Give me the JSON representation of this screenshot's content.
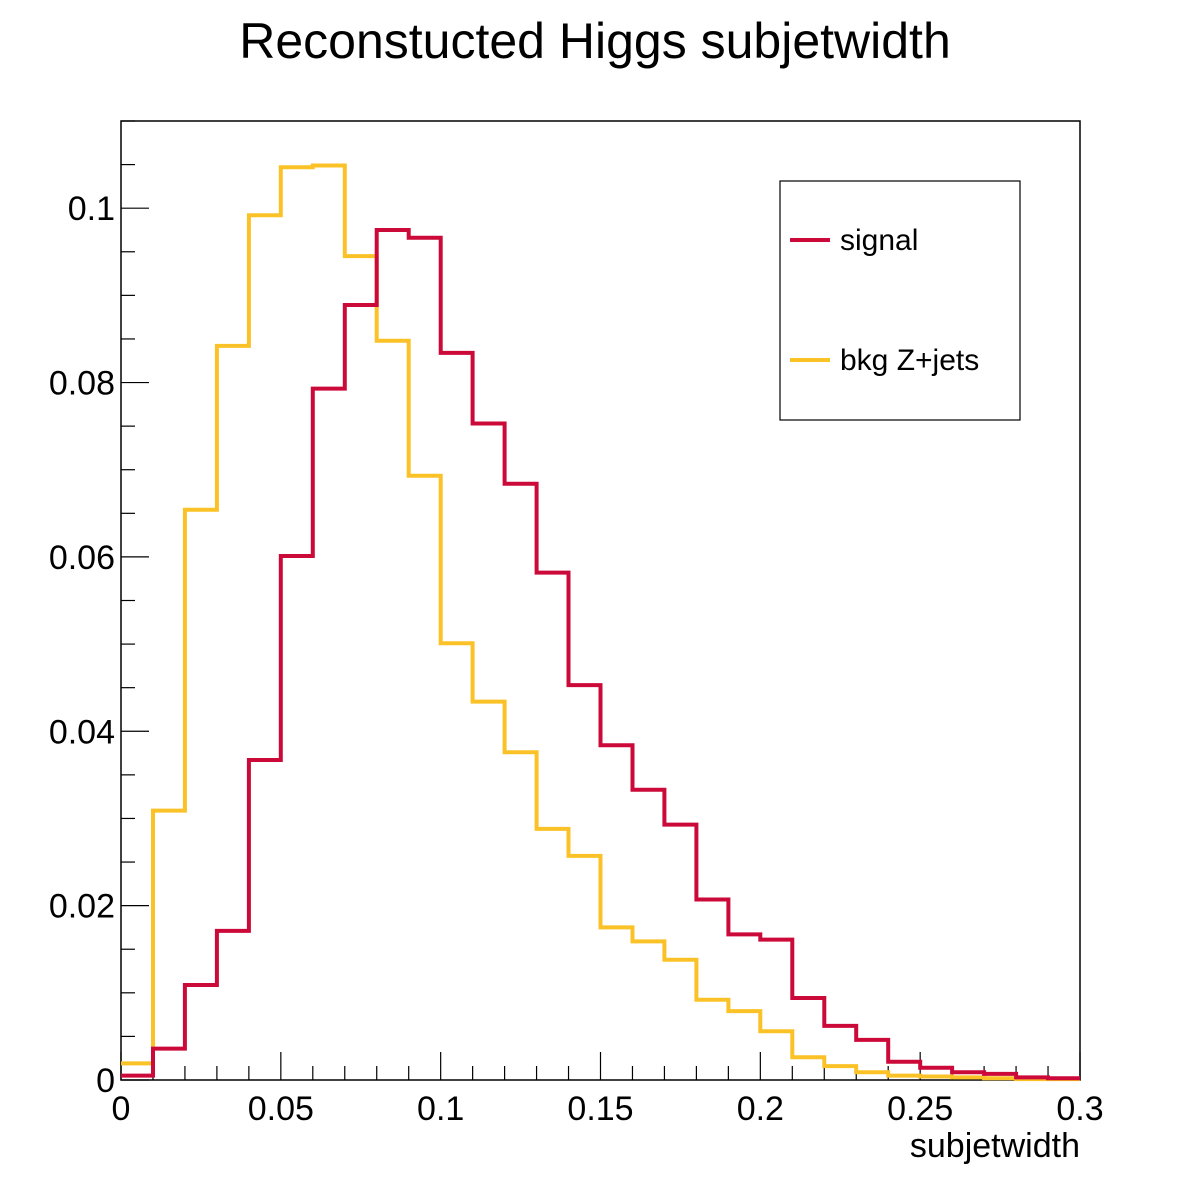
{
  "chart_data": {
    "type": "histogram",
    "title": "Reconstucted Higgs subjetwidth",
    "xlabel": "subjetwidth",
    "ylabel": "",
    "xlim": [
      0,
      0.3
    ],
    "ylim": [
      0,
      0.11
    ],
    "bin_width": 0.01,
    "x_ticks": [
      {
        "value": 0,
        "label": "0"
      },
      {
        "value": 0.05,
        "label": "0.05"
      },
      {
        "value": 0.1,
        "label": "0.1"
      },
      {
        "value": 0.15,
        "label": "0.15"
      },
      {
        "value": 0.2,
        "label": "0.2"
      },
      {
        "value": 0.25,
        "label": "0.25"
      },
      {
        "value": 0.3,
        "label": "0.3"
      }
    ],
    "y_ticks": [
      {
        "value": 0,
        "label": "0"
      },
      {
        "value": 0.02,
        "label": "0.02"
      },
      {
        "value": 0.04,
        "label": "0.04"
      },
      {
        "value": 0.06,
        "label": "0.06"
      },
      {
        "value": 0.08,
        "label": "0.08"
      },
      {
        "value": 0.1,
        "label": "0.1"
      }
    ],
    "grid": false,
    "legend_position": "top-right",
    "series": [
      {
        "name": "signal",
        "color": "#cc0a3a",
        "values": [
          0.0005,
          0.0036,
          0.0109,
          0.0171,
          0.0367,
          0.0601,
          0.0793,
          0.0889,
          0.0975,
          0.0966,
          0.0834,
          0.0753,
          0.0684,
          0.0582,
          0.0453,
          0.0384,
          0.0333,
          0.0293,
          0.0207,
          0.0167,
          0.0161,
          0.0094,
          0.0062,
          0.0046,
          0.0021,
          0.0014,
          0.0009,
          0.0007,
          0.0003,
          0.0002
        ]
      },
      {
        "name": "bkg Z+jets",
        "color": "#fbc227",
        "values": [
          0.0019,
          0.0309,
          0.0654,
          0.0842,
          0.0992,
          0.1047,
          0.1049,
          0.0945,
          0.0848,
          0.0693,
          0.0501,
          0.0434,
          0.0376,
          0.0288,
          0.0257,
          0.0175,
          0.0159,
          0.0138,
          0.0092,
          0.0079,
          0.0056,
          0.0026,
          0.0016,
          0.0009,
          0.0005,
          0.0004,
          0.0003,
          0.0002,
          0.0001,
          0.0001
        ]
      }
    ]
  }
}
